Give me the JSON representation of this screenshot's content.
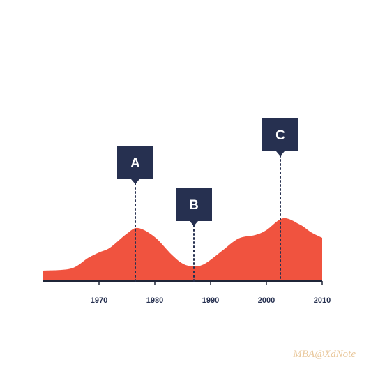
{
  "chart_data": {
    "type": "area",
    "x": [
      1960,
      1965,
      1968,
      1970,
      1972,
      1975,
      1977,
      1980,
      1983,
      1985,
      1987,
      1989,
      1992,
      1995,
      1998,
      2000,
      2003,
      2006,
      2008,
      2010
    ],
    "values": [
      15,
      18,
      33,
      41,
      48,
      68,
      76,
      63,
      38,
      25,
      21,
      25,
      43,
      61,
      66,
      73,
      90,
      81,
      70,
      62
    ],
    "color": "#f0533f",
    "xlim": [
      1960,
      2010
    ],
    "xticks": [
      1970,
      1980,
      1990,
      2000,
      2010
    ],
    "ylim": [
      0,
      100
    ],
    "annotations": [
      {
        "label": "A",
        "x": 1976.5
      },
      {
        "label": "B",
        "x": 1987
      },
      {
        "label": "C",
        "x": 2002.5
      }
    ],
    "annotation_color": "#263050"
  },
  "watermark": "MBA@XdNote"
}
